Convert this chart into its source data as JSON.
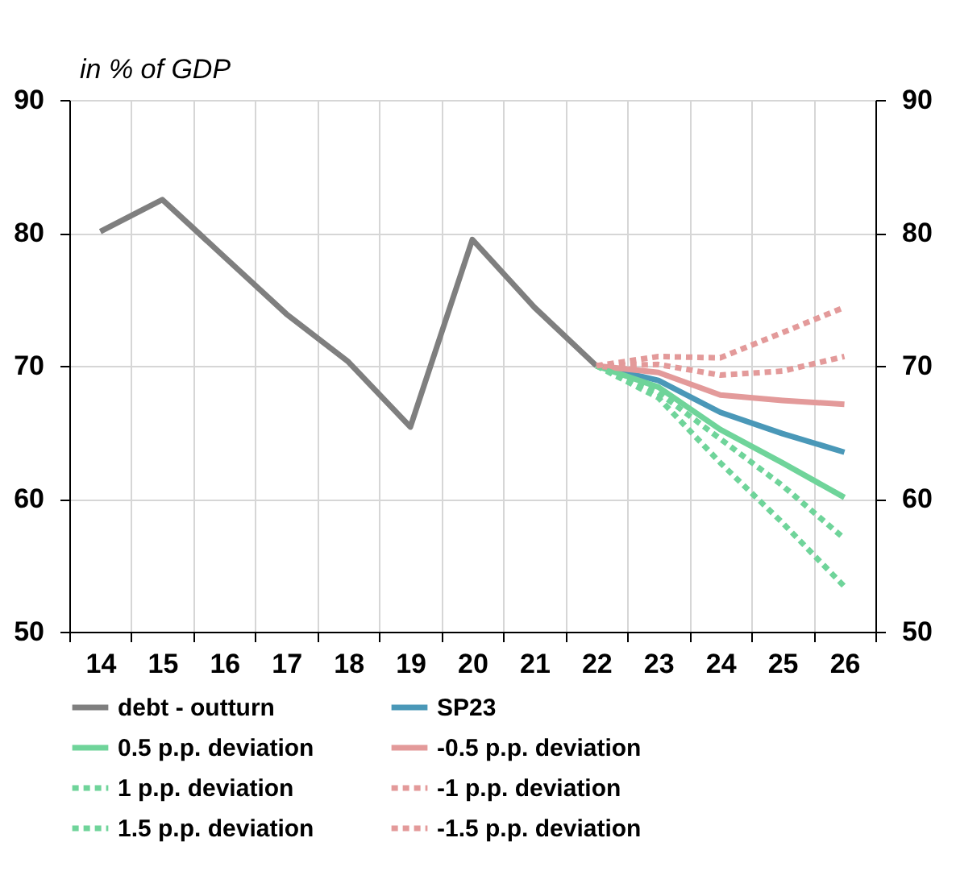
{
  "chart_data": {
    "type": "line",
    "ylabel": "in % of GDP",
    "categories": [
      "14",
      "15",
      "16",
      "17",
      "18",
      "19",
      "20",
      "21",
      "22",
      "23",
      "24",
      "25",
      "26"
    ],
    "ylim": [
      50,
      90
    ],
    "yticks": [
      50,
      60,
      70,
      80,
      90
    ],
    "y2lim": [
      50,
      90
    ],
    "y2ticks": [
      50,
      60,
      70,
      80,
      90
    ],
    "grid": true,
    "legend": "bottom",
    "series": [
      {
        "name": "debt - outturn",
        "color": "#7f7f7f",
        "line_style": "solid",
        "values": [
          80.1,
          82.5,
          78.2,
          73.9,
          70.3,
          65.4,
          79.5,
          74.4,
          70.0,
          null,
          null,
          null,
          null
        ]
      },
      {
        "name": "SP23",
        "color": "#4a98b8",
        "line_style": "solid",
        "values": [
          null,
          null,
          null,
          null,
          null,
          null,
          null,
          null,
          70.0,
          68.9,
          66.5,
          64.9,
          63.5
        ]
      },
      {
        "name": "0.5 p.p. deviation",
        "color": "#6fd49a",
        "line_style": "solid",
        "values": [
          null,
          null,
          null,
          null,
          null,
          null,
          null,
          null,
          70.0,
          68.4,
          65.2,
          62.7,
          60.1
        ]
      },
      {
        "name": "-0.5 p.p. deviation",
        "color": "#e39a9a",
        "line_style": "solid",
        "values": [
          null,
          null,
          null,
          null,
          null,
          null,
          null,
          null,
          70.0,
          69.5,
          67.8,
          67.4,
          67.1
        ]
      },
      {
        "name": "1 p.p. deviation",
        "color": "#6fd49a",
        "line_style": "dashed",
        "values": [
          null,
          null,
          null,
          null,
          null,
          null,
          null,
          null,
          70.0,
          68.0,
          64.5,
          61.0,
          57.0
        ]
      },
      {
        "name": "-1 p.p. deviation",
        "color": "#e39a9a",
        "line_style": "dashed",
        "values": [
          null,
          null,
          null,
          null,
          null,
          null,
          null,
          null,
          70.0,
          70.1,
          69.3,
          69.6,
          70.7
        ]
      },
      {
        "name": "1.5 p.p. deviation",
        "color": "#6fd49a",
        "line_style": "dashed",
        "values": [
          null,
          null,
          null,
          null,
          null,
          null,
          null,
          null,
          70.0,
          67.6,
          62.7,
          58.2,
          53.4
        ]
      },
      {
        "name": "-1.5 p.p. deviation",
        "color": "#e39a9a",
        "line_style": "dashed",
        "values": [
          null,
          null,
          null,
          null,
          null,
          null,
          null,
          null,
          70.0,
          70.7,
          70.6,
          72.5,
          74.4
        ]
      }
    ]
  }
}
